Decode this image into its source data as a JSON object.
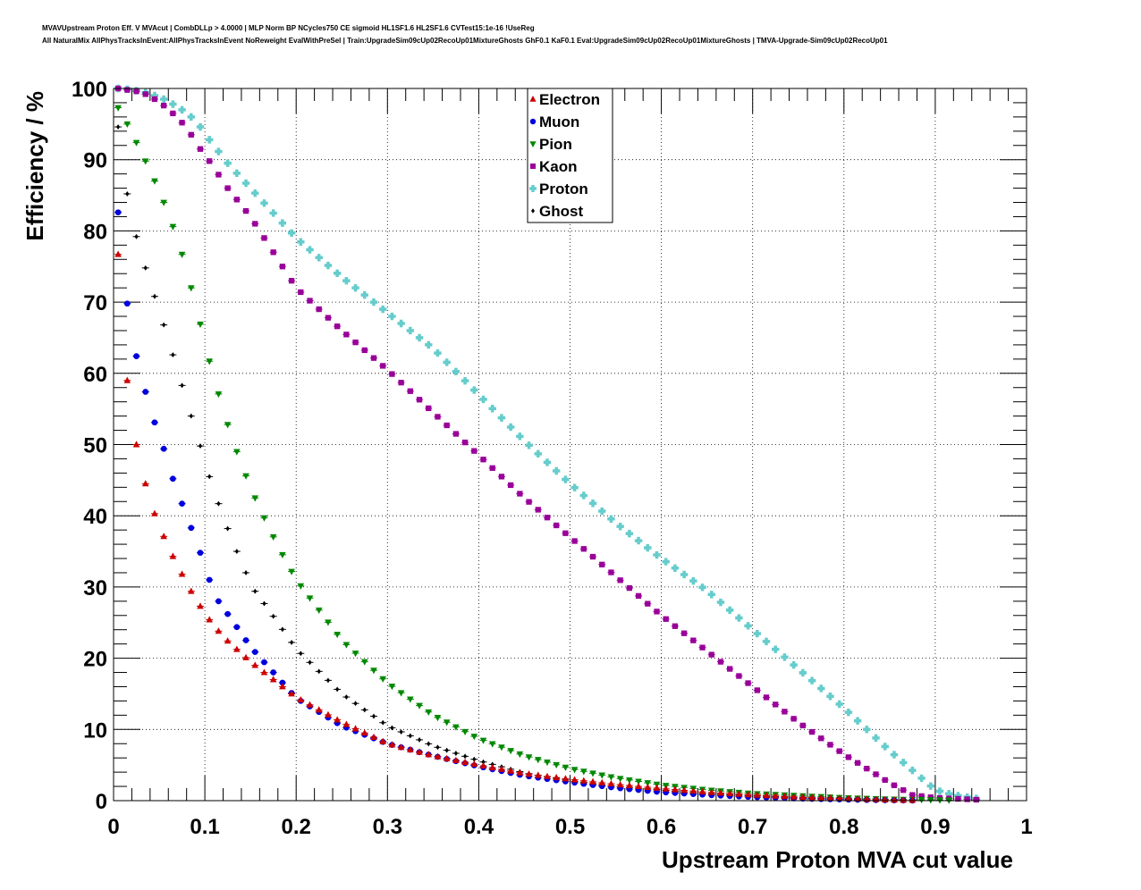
{
  "header": {
    "title_line1": "MVAVUpstream Proton Eff. V MVAcut | CombDLLp > 4.0000 | MLP Norm BP NCycles750 CE sigmoid HL1SF1.6 HL2SF1.6 CVTest15:1e-16 !UseReg",
    "title_line2": "All NaturalMix AllPhysTracksInEvent:AllPhysTracksInEvent NoReweight EvalWithPreSel | Train:UpgradeSim09cUp02RecoUp01MixtureGhosts GhF0.1 KaF0.1 Eval:UpgradeSim09cUp02RecoUp01MixtureGhosts | TMVA-Upgrade-Sim09cUp02RecoUp01"
  },
  "chart_data": {
    "type": "scatter",
    "xlabel": "Upstream Proton MVA cut value",
    "ylabel": "Efficiency / %",
    "xlim": [
      0,
      1
    ],
    "ylim": [
      0,
      100
    ],
    "x_ticks": [
      "0",
      "0.1",
      "0.2",
      "0.3",
      "0.4",
      "0.5",
      "0.6",
      "0.7",
      "0.8",
      "0.9",
      "1"
    ],
    "y_ticks": [
      "0",
      "10",
      "20",
      "30",
      "40",
      "50",
      "60",
      "70",
      "80",
      "90",
      "100"
    ],
    "grid": true,
    "legend_position": "top-center",
    "x_step": 0.01,
    "x_start": 0.005,
    "series": [
      {
        "name": "Electron",
        "color": "#cc0000",
        "marker": "triangle-up",
        "anchors": [
          [
            0.005,
            76.7
          ],
          [
            0.015,
            59
          ],
          [
            0.025,
            50
          ],
          [
            0.035,
            44.5
          ],
          [
            0.045,
            40.3
          ],
          [
            0.055,
            37.1
          ],
          [
            0.065,
            34.3
          ],
          [
            0.075,
            31.8
          ],
          [
            0.085,
            29.4
          ],
          [
            0.095,
            27.3
          ],
          [
            0.105,
            25.4
          ],
          [
            0.12,
            23
          ],
          [
            0.15,
            19.5
          ],
          [
            0.2,
            14.5
          ],
          [
            0.25,
            11
          ],
          [
            0.3,
            8
          ],
          [
            0.35,
            6.3
          ],
          [
            0.4,
            5
          ],
          [
            0.45,
            3.8
          ],
          [
            0.5,
            3
          ],
          [
            0.55,
            2.3
          ],
          [
            0.6,
            1.7
          ],
          [
            0.65,
            1.2
          ],
          [
            0.7,
            0.8
          ],
          [
            0.75,
            0.5
          ],
          [
            0.8,
            0.3
          ],
          [
            0.85,
            0.1
          ],
          [
            0.88,
            0.05
          ]
        ]
      },
      {
        "name": "Muon",
        "color": "#0000dd",
        "marker": "circle",
        "anchors": [
          [
            0.005,
            82.6
          ],
          [
            0.015,
            69.8
          ],
          [
            0.025,
            62.4
          ],
          [
            0.035,
            57.4
          ],
          [
            0.045,
            53.1
          ],
          [
            0.055,
            49.4
          ],
          [
            0.065,
            45.2
          ],
          [
            0.075,
            41.7
          ],
          [
            0.085,
            38.3
          ],
          [
            0.095,
            34.8
          ],
          [
            0.105,
            31
          ],
          [
            0.115,
            28
          ],
          [
            0.13,
            25.3
          ],
          [
            0.15,
            21.6
          ],
          [
            0.2,
            14.4
          ],
          [
            0.25,
            10.5
          ],
          [
            0.3,
            8
          ],
          [
            0.35,
            6.3
          ],
          [
            0.4,
            4.8
          ],
          [
            0.45,
            3.5
          ],
          [
            0.5,
            2.6
          ],
          [
            0.55,
            1.8
          ],
          [
            0.6,
            1.2
          ],
          [
            0.65,
            0.8
          ],
          [
            0.7,
            0.5
          ],
          [
            0.75,
            0.3
          ],
          [
            0.8,
            0.15
          ],
          [
            0.85,
            0.05
          ],
          [
            0.88,
            0
          ]
        ]
      },
      {
        "name": "Pion",
        "color": "#008800",
        "marker": "triangle-down",
        "anchors": [
          [
            0.005,
            97.3
          ],
          [
            0.015,
            95
          ],
          [
            0.025,
            92.4
          ],
          [
            0.035,
            89.8
          ],
          [
            0.045,
            87
          ],
          [
            0.055,
            84
          ],
          [
            0.065,
            80.6
          ],
          [
            0.075,
            76.7
          ],
          [
            0.085,
            72
          ],
          [
            0.095,
            66.9
          ],
          [
            0.105,
            61.7
          ],
          [
            0.115,
            57.1
          ],
          [
            0.125,
            52.8
          ],
          [
            0.135,
            49
          ],
          [
            0.145,
            45.6
          ],
          [
            0.155,
            42.5
          ],
          [
            0.165,
            39.7
          ],
          [
            0.18,
            35.7
          ],
          [
            0.2,
            31
          ],
          [
            0.25,
            22.5
          ],
          [
            0.3,
            16.5
          ],
          [
            0.35,
            12
          ],
          [
            0.4,
            8.7
          ],
          [
            0.45,
            6.3
          ],
          [
            0.5,
            4.5
          ],
          [
            0.55,
            3.2
          ],
          [
            0.6,
            2.2
          ],
          [
            0.65,
            1.5
          ],
          [
            0.7,
            1
          ],
          [
            0.75,
            0.7
          ],
          [
            0.8,
            0.4
          ],
          [
            0.85,
            0.2
          ],
          [
            0.9,
            0.1
          ],
          [
            0.92,
            0.05
          ]
        ]
      },
      {
        "name": "Kaon",
        "color": "#990099",
        "marker": "square",
        "anchors": [
          [
            0.005,
            100
          ],
          [
            0.015,
            99.8
          ],
          [
            0.025,
            99.6
          ],
          [
            0.035,
            99.2
          ],
          [
            0.045,
            98.5
          ],
          [
            0.055,
            97.6
          ],
          [
            0.065,
            96.5
          ],
          [
            0.075,
            95.2
          ],
          [
            0.085,
            93.5
          ],
          [
            0.095,
            91.5
          ],
          [
            0.105,
            89.8
          ],
          [
            0.125,
            86
          ],
          [
            0.15,
            82
          ],
          [
            0.2,
            72
          ],
          [
            0.25,
            66
          ],
          [
            0.3,
            60.5
          ],
          [
            0.35,
            54.5
          ],
          [
            0.4,
            48.5
          ],
          [
            0.45,
            42.5
          ],
          [
            0.5,
            37
          ],
          [
            0.55,
            31.5
          ],
          [
            0.6,
            26
          ],
          [
            0.65,
            21
          ],
          [
            0.7,
            16
          ],
          [
            0.75,
            11
          ],
          [
            0.8,
            6.5
          ],
          [
            0.85,
            2.5
          ],
          [
            0.875,
            0.8
          ],
          [
            0.9,
            0.4
          ],
          [
            0.95,
            0.1
          ]
        ]
      },
      {
        "name": "Proton",
        "color": "#66cccc",
        "marker": "cross",
        "anchors": [
          [
            0.005,
            100
          ],
          [
            0.015,
            99.9
          ],
          [
            0.025,
            99.7
          ],
          [
            0.035,
            99.4
          ],
          [
            0.045,
            99
          ],
          [
            0.055,
            98.5
          ],
          [
            0.065,
            97.8
          ],
          [
            0.075,
            97
          ],
          [
            0.085,
            96
          ],
          [
            0.095,
            94.6
          ],
          [
            0.105,
            92.8
          ],
          [
            0.125,
            89.5
          ],
          [
            0.15,
            86
          ],
          [
            0.2,
            79
          ],
          [
            0.25,
            73.5
          ],
          [
            0.3,
            68.5
          ],
          [
            0.35,
            63.5
          ],
          [
            0.4,
            57
          ],
          [
            0.45,
            50.5
          ],
          [
            0.5,
            44.5
          ],
          [
            0.55,
            39
          ],
          [
            0.6,
            34
          ],
          [
            0.65,
            29.5
          ],
          [
            0.7,
            24
          ],
          [
            0.75,
            18.5
          ],
          [
            0.8,
            13
          ],
          [
            0.85,
            7
          ],
          [
            0.9,
            1.5
          ],
          [
            0.92,
            0.8
          ],
          [
            0.95,
            0.2
          ]
        ]
      },
      {
        "name": "Ghost",
        "color": "#000000",
        "marker": "diamond",
        "anchors": [
          [
            0.005,
            94.6
          ],
          [
            0.015,
            85.2
          ],
          [
            0.025,
            79.2
          ],
          [
            0.035,
            74.8
          ],
          [
            0.045,
            70.8
          ],
          [
            0.055,
            66.8
          ],
          [
            0.065,
            62.6
          ],
          [
            0.075,
            58.3
          ],
          [
            0.085,
            54
          ],
          [
            0.095,
            49.8
          ],
          [
            0.105,
            45.5
          ],
          [
            0.115,
            41.7
          ],
          [
            0.125,
            38.2
          ],
          [
            0.135,
            35
          ],
          [
            0.145,
            32
          ],
          [
            0.155,
            29.4
          ],
          [
            0.17,
            26.8
          ],
          [
            0.2,
            21.3
          ],
          [
            0.25,
            15
          ],
          [
            0.3,
            10.5
          ],
          [
            0.35,
            7.7
          ],
          [
            0.4,
            5.6
          ],
          [
            0.45,
            3.9
          ],
          [
            0.5,
            2.8
          ],
          [
            0.55,
            2
          ],
          [
            0.6,
            1.5
          ],
          [
            0.65,
            1
          ],
          [
            0.7,
            0.7
          ],
          [
            0.75,
            0.4
          ],
          [
            0.8,
            0.2
          ],
          [
            0.85,
            0.1
          ],
          [
            0.88,
            0.05
          ]
        ]
      }
    ]
  }
}
